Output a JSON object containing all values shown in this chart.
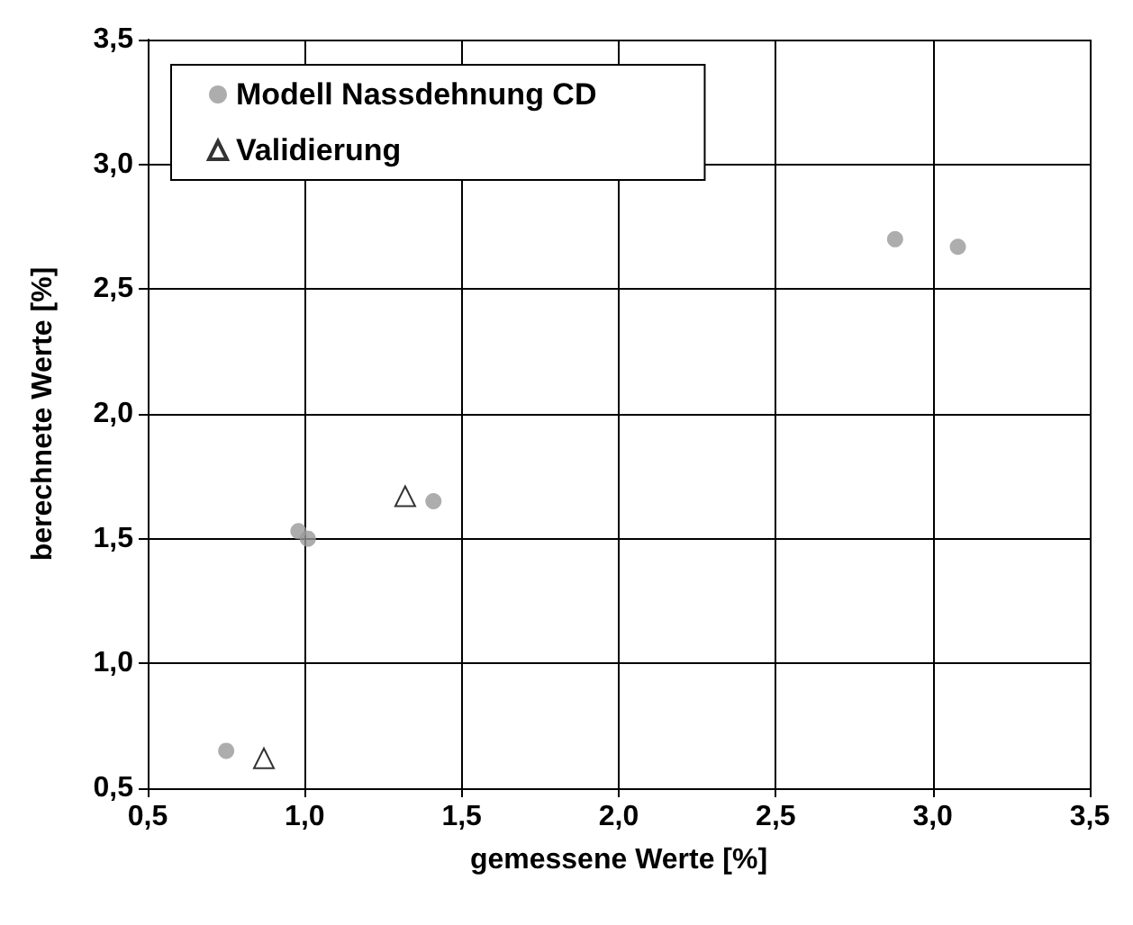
{
  "chart_data": {
    "type": "scatter",
    "xlabel": "gemessene Werte [%]",
    "ylabel": "berechnete Werte [%]",
    "xlim": [
      0.5,
      3.5
    ],
    "xticks": [
      {
        "value": 0.5,
        "label": "0,5"
      },
      {
        "value": 1.0,
        "label": "1,0"
      },
      {
        "value": 1.5,
        "label": "1,5"
      },
      {
        "value": 2.0,
        "label": "2,0"
      },
      {
        "value": 2.5,
        "label": "2,5"
      },
      {
        "value": 3.0,
        "label": "3,0"
      },
      {
        "value": 3.5,
        "label": "3,5"
      }
    ],
    "ylim": [
      0.5,
      3.5
    ],
    "yticks": [
      {
        "value": 0.5,
        "label": "0,5"
      },
      {
        "value": 1.0,
        "label": "1,0"
      },
      {
        "value": 1.5,
        "label": "1,5"
      },
      {
        "value": 2.0,
        "label": "2,0"
      },
      {
        "value": 2.5,
        "label": "2,5"
      },
      {
        "value": 3.0,
        "label": "3,0"
      },
      {
        "value": 3.5,
        "label": "3,5"
      }
    ],
    "grid": true,
    "legend": "top left",
    "series": [
      {
        "name": "Modell Nassdehnung CD",
        "color": "#999999",
        "marker": "circle",
        "x": [
          0.75,
          0.98,
          1.01,
          1.41,
          2.88,
          3.08
        ],
        "values": [
          0.65,
          1.53,
          1.5,
          1.65,
          2.7,
          2.67
        ]
      },
      {
        "name": "Validierung",
        "color": "#000000",
        "marker": "triangle",
        "x": [
          0.87,
          1.32
        ],
        "values": [
          0.62,
          1.67
        ]
      }
    ]
  }
}
